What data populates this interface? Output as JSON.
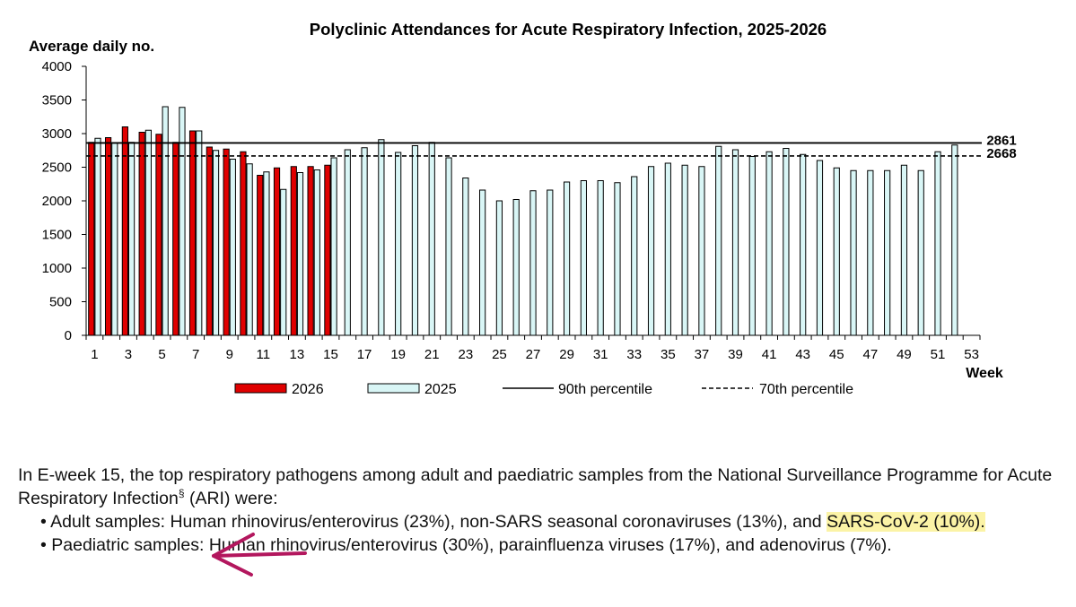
{
  "chart_data": {
    "type": "bar",
    "title": "Polyclinic Attendances for Acute Respiratory Infection, 2025-2026",
    "ylabel": "Average daily no.",
    "xlabel": "Week",
    "ylim": [
      0,
      4000
    ],
    "yticks": [
      0,
      500,
      1000,
      1500,
      2000,
      2500,
      3000,
      3500,
      4000
    ],
    "xtick_labels": [
      "1",
      "3",
      "5",
      "7",
      "9",
      "11",
      "13",
      "15",
      "17",
      "19",
      "21",
      "23",
      "25",
      "27",
      "29",
      "31",
      "33",
      "35",
      "37",
      "39",
      "41",
      "43",
      "45",
      "47",
      "49",
      "51",
      "53"
    ],
    "weeks": [
      1,
      2,
      3,
      4,
      5,
      6,
      7,
      8,
      9,
      10,
      11,
      12,
      13,
      14,
      15,
      16,
      17,
      18,
      19,
      20,
      21,
      22,
      23,
      24,
      25,
      26,
      27,
      28,
      29,
      30,
      31,
      32,
      33,
      34,
      35,
      36,
      37,
      38,
      39,
      40,
      41,
      42,
      43,
      44,
      45,
      46,
      47,
      48,
      49,
      50,
      51,
      52,
      53
    ],
    "series": [
      {
        "name": "2026",
        "color": "#e00000",
        "values": [
          2870,
          2940,
          3100,
          3020,
          2990,
          2870,
          3040,
          2800,
          2770,
          2730,
          2380,
          2490,
          2510,
          2510,
          2530
        ]
      },
      {
        "name": "2025",
        "color": "#d9f6f6",
        "values": [
          2930,
          2860,
          2870,
          3050,
          3400,
          3390,
          3040,
          2750,
          2620,
          2550,
          2430,
          2170,
          2420,
          2460,
          2640,
          2760,
          2790,
          2910,
          2720,
          2820,
          2870,
          2640,
          2340,
          2160,
          2000,
          2020,
          2150,
          2160,
          2280,
          2300,
          2300,
          2270,
          2360,
          2510,
          2560,
          2530,
          2510,
          2810,
          2760,
          2660,
          2730,
          2780,
          2690,
          2600,
          2490,
          2450,
          2450,
          2450,
          2530,
          2450,
          2730,
          2830
        ]
      }
    ],
    "reference_lines": [
      {
        "name": "90th percentile",
        "value": 2861,
        "label": "2861",
        "style": "solid"
      },
      {
        "name": "70th percentile",
        "value": 2668,
        "label": "2668",
        "style": "dashed"
      }
    ],
    "legend": {
      "placement": "bottom",
      "labels": [
        "2026",
        "2025",
        "90th percentile",
        "70th percentile"
      ]
    },
    "grid": false
  },
  "text": {
    "intro_before": "In E-week 15, the top respiratory pathogens among adult and paediatric samples from the National Surveillance Programme for Acute Respiratory Infection",
    "intro_sup": "§",
    "intro_after": " (ARI) were:",
    "adult_bullet": "• Adult samples: Human rhinovirus/enterovirus (23%), non-SARS seasonal coronaviruses (13%), and ",
    "adult_highlight": "SARS-CoV-2 (10%).",
    "paed_bullet": "• Paediatric samples: Human rhinovirus/enterovirus (30%), parainfluenza viruses (17%), and adenovirus (7%).",
    "highlight_color": "#fbf3a6",
    "arrow_color": "#b3175e"
  }
}
